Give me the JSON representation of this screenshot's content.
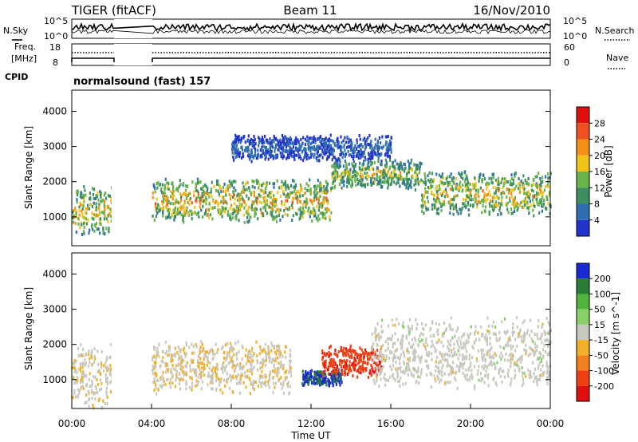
{
  "header": {
    "radar": "TIGER (fitACF)",
    "beam": "Beam 11",
    "date": "16/Nov/2010"
  },
  "noise_panel": {
    "left_label": "N.Sky",
    "right_label": "N.Search",
    "left_ticks": [
      "10^5",
      "10^0"
    ],
    "right_ticks": [
      "10^5",
      "10^0"
    ]
  },
  "freq_panel": {
    "left_label_1": "Freq.",
    "left_label_2": "[MHz]",
    "right_label": "Nave",
    "left_ticks": [
      "18",
      "8"
    ],
    "right_ticks": [
      "60",
      "0"
    ]
  },
  "cpid": {
    "label": "CPID",
    "value": "normalsound (fast) 157"
  },
  "colors": {
    "power_scale": [
      "#2233cc",
      "#2f6fb0",
      "#3d8f5f",
      "#66b44a",
      "#f2c318",
      "#f29018",
      "#ef5020",
      "#e01010"
    ],
    "velocity_scale": [
      "#1a2ad0",
      "#2a7c3a",
      "#4fb43c",
      "#8ad06a",
      "#c8c8c0",
      "#f2b028",
      "#f28020",
      "#ee4010",
      "#e01010"
    ]
  },
  "chart_data": [
    {
      "type": "heatmap",
      "title": "",
      "xlabel": "",
      "ylabel": "Slant Range [km]",
      "xlim": [
        "00:00",
        "24:00"
      ],
      "ylim": [
        180,
        4600
      ],
      "y_ticks": [
        1000,
        2000,
        3000,
        4000
      ],
      "colorbar": {
        "label": "Power [dB]",
        "ticks": [
          4,
          8,
          12,
          16,
          20,
          24,
          28
        ],
        "range": [
          0,
          32
        ]
      },
      "data_gap": [
        "02:00",
        "04:00"
      ],
      "echo_bands": [
        {
          "t": [
            0.0,
            2.0
          ],
          "range_km": [
            600,
            1800
          ],
          "peak_db": 26
        },
        {
          "t": [
            4.0,
            13.0
          ],
          "range_km": [
            1000,
            2000
          ],
          "peak_db": 28
        },
        {
          "t": [
            13.0,
            17.5
          ],
          "range_km": [
            1900,
            2600
          ],
          "peak_db": 22
        },
        {
          "t": [
            17.5,
            24.0
          ],
          "range_km": [
            1200,
            2200
          ],
          "peak_db": 26
        },
        {
          "t": [
            8.0,
            16.0
          ],
          "range_km": [
            2700,
            3300
          ],
          "peak_db": 8
        }
      ]
    },
    {
      "type": "heatmap",
      "title": "",
      "xlabel": "Time UT",
      "ylabel": "Slant Range [km]",
      "xlim": [
        "00:00",
        "24:00"
      ],
      "ylim": [
        180,
        4600
      ],
      "y_ticks": [
        1000,
        2000,
        3000,
        4000
      ],
      "x_ticks": [
        "00:00",
        "04:00",
        "08:00",
        "12:00",
        "16:00",
        "20:00",
        "00:00"
      ],
      "colorbar": {
        "label": "Velocity [m s^-1]",
        "ticks": [
          200,
          100,
          50,
          15,
          -15,
          -50,
          -100,
          -200
        ],
        "range": [
          -250,
          250
        ]
      },
      "data_gap": [
        "02:00",
        "04:00"
      ],
      "echo_bands": [
        {
          "t": [
            0.0,
            2.0
          ],
          "range_km": [
            400,
            1900
          ],
          "velocity": -10
        },
        {
          "t": [
            4.0,
            11.0
          ],
          "range_km": [
            800,
            2000
          ],
          "velocity": -20
        },
        {
          "t": [
            11.5,
            13.5
          ],
          "range_km": [
            900,
            1300
          ],
          "velocity": 200
        },
        {
          "t": [
            12.5,
            15.5
          ],
          "range_km": [
            1200,
            1900
          ],
          "velocity": -180
        },
        {
          "t": [
            15.0,
            24.0
          ],
          "range_km": [
            1000,
            2600
          ],
          "velocity": 0
        }
      ]
    }
  ]
}
